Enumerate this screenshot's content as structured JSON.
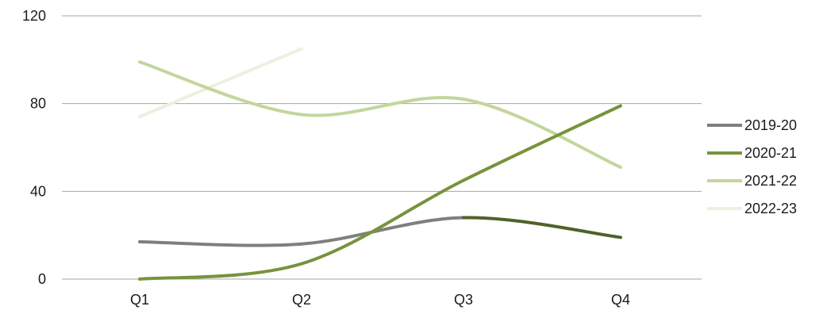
{
  "chart_data": {
    "type": "line",
    "title": "",
    "xlabel": "",
    "ylabel": "",
    "categories": [
      "Q1",
      "Q2",
      "Q3",
      "Q4"
    ],
    "ylim": [
      0,
      120
    ],
    "yticks": [
      0,
      40,
      80,
      120
    ],
    "grid": "horizontal",
    "smooth": true,
    "legend_position": "right",
    "series": [
      {
        "name": "2019-20",
        "values": [
          17,
          16,
          28,
          19
        ],
        "color": "#7f7f7f",
        "segment_colors": [
          "#7f7f7f",
          "#7f7f7f",
          "#4f6228"
        ]
      },
      {
        "name": "2020-21",
        "values": [
          0,
          7,
          45,
          79
        ],
        "color": "#77933c"
      },
      {
        "name": "2021-22",
        "values": [
          99,
          75,
          82,
          51
        ],
        "color": "#c3d69b"
      },
      {
        "name": "2022-23",
        "values": [
          74,
          105,
          null,
          null
        ],
        "color": "#ebf1de"
      }
    ]
  }
}
